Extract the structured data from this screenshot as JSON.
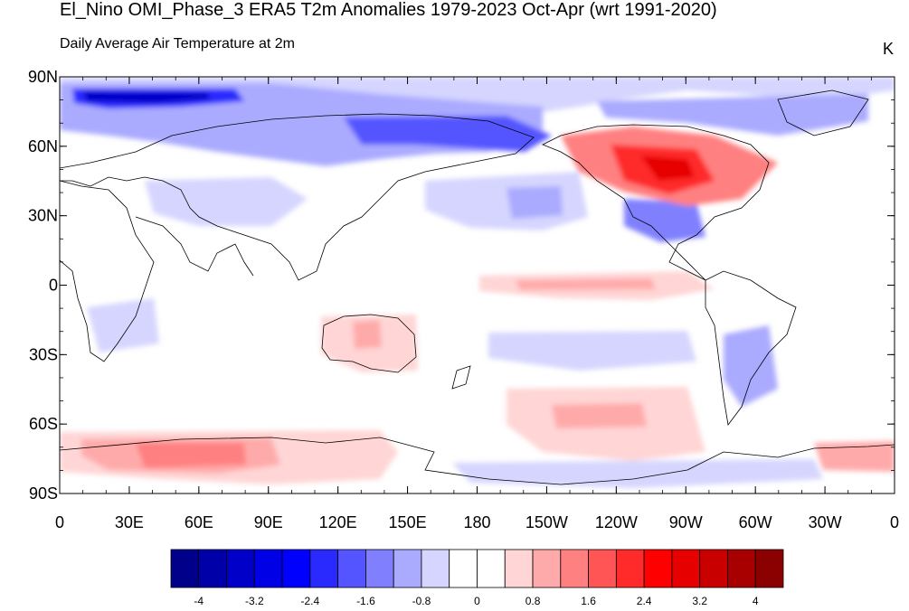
{
  "title": "El_Nino OMI_Phase_3 ERA5 T2m Anomalies 1979-2023 Oct-Apr (wrt 1991-2020)",
  "subtitle": "Daily Average Air Temperature at 2m",
  "units": "K",
  "map": {
    "projection": "cylindrical-equidistant",
    "center_longitude": 180,
    "grid": false,
    "lat_labels": [
      "90N",
      "60N",
      "30N",
      "0",
      "30S",
      "60S",
      "90S"
    ],
    "lon_labels": [
      "0",
      "30E",
      "60E",
      "90E",
      "120E",
      "150E",
      "180",
      "150W",
      "120W",
      "90W",
      "60W",
      "30W",
      "0"
    ]
  },
  "colorbar": {
    "colors": [
      "#00008b",
      "#0000a8",
      "#0000c8",
      "#0000e6",
      "#0000ff",
      "#2a2aff",
      "#5555ff",
      "#8080ff",
      "#aaaaff",
      "#d5d5ff",
      "#ffffff",
      "#ffffff",
      "#ffd5d5",
      "#ffaaaa",
      "#ff8080",
      "#ff5555",
      "#ff2a2a",
      "#ff0000",
      "#e60000",
      "#c80000",
      "#a80000",
      "#8b0000"
    ],
    "tick_labels": [
      "-4",
      "-3.2",
      "-2.4",
      "-1.6",
      "-0.8",
      "0",
      "0.8",
      "1.6",
      "2.4",
      "3.2",
      "4"
    ]
  },
  "anomaly_regions": [
    {
      "region": "Arctic Siberia",
      "sign": "cold",
      "level": -3.0
    },
    {
      "region": "Northern Eurasia",
      "sign": "cold",
      "level": -1.6
    },
    {
      "region": "Northeast Siberia",
      "sign": "cold",
      "level": -2.2
    },
    {
      "region": "Central North America",
      "sign": "warm",
      "level": 3.0
    },
    {
      "region": "Western North America",
      "sign": "warm",
      "level": 1.2
    },
    {
      "region": "Southern United States",
      "sign": "cold",
      "level": -1.4
    },
    {
      "region": "North Pacific",
      "sign": "cold",
      "level": -1.0
    },
    {
      "region": "Equatorial Eastern Pacific",
      "sign": "warm",
      "level": 1.0
    },
    {
      "region": "South Pacific",
      "sign": "cold",
      "level": -0.8
    },
    {
      "region": "Australia",
      "sign": "warm",
      "level": 1.0
    },
    {
      "region": "Southern Ocean Pacific sector",
      "sign": "warm",
      "level": 1.0
    },
    {
      "region": "East Antarctica",
      "sign": "warm",
      "level": 1.8
    },
    {
      "region": "West Antarctica",
      "sign": "cold",
      "level": -0.8
    },
    {
      "region": "Patagonia",
      "sign": "cold",
      "level": -1.2
    }
  ]
}
